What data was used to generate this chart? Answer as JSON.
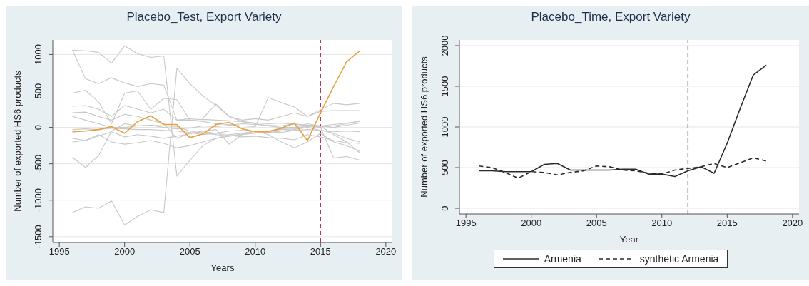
{
  "chart_data": [
    {
      "type": "line",
      "title": "Placebo_Test, Export Variety",
      "xlabel": "Years",
      "ylabel": "Number of exported HS6 products",
      "x": [
        1996,
        1997,
        1998,
        1999,
        2000,
        2001,
        2002,
        2003,
        2004,
        2005,
        2006,
        2007,
        2008,
        2009,
        2010,
        2011,
        2012,
        2013,
        2014,
        2015,
        2016,
        2017,
        2018
      ],
      "series": [
        {
          "color": "#c8c8c8",
          "values": [
            1060,
            1050,
            1030,
            880,
            1120,
            1010,
            960,
            980,
            -670,
            -450,
            -250,
            -150,
            -100,
            -80,
            -50,
            -60,
            -70,
            -40,
            -30,
            -40,
            -80,
            -150,
            -200
          ]
        },
        {
          "color": "#c8c8c8",
          "values": [
            1060,
            670,
            600,
            680,
            610,
            560,
            600,
            580,
            100,
            100,
            110,
            100,
            90,
            80,
            60,
            50,
            60,
            40,
            30,
            20,
            40,
            60,
            80
          ]
        },
        {
          "color": "#c8c8c8",
          "values": [
            -1170,
            -1090,
            -1110,
            -1010,
            -1340,
            -1220,
            -1130,
            -1170,
            810,
            600,
            430,
            300,
            150,
            80,
            50,
            20,
            0,
            0,
            10,
            20,
            0,
            30,
            60
          ]
        },
        {
          "color": "#c8c8c8",
          "values": [
            470,
            510,
            350,
            50,
            470,
            500,
            250,
            400,
            380,
            100,
            80,
            50,
            40,
            20,
            10,
            410,
            340,
            280,
            150,
            240,
            330,
            310,
            330
          ]
        },
        {
          "color": "#c8c8c8",
          "values": [
            -410,
            -550,
            -390,
            -50,
            50,
            20,
            30,
            20,
            10,
            -50,
            -80,
            -100,
            -120,
            -90,
            -80,
            -50,
            -30,
            -20,
            20,
            0,
            -420,
            -400,
            -450
          ]
        },
        {
          "color": "#c8c8c8",
          "values": [
            290,
            300,
            250,
            150,
            300,
            250,
            200,
            250,
            100,
            120,
            130,
            320,
            150,
            100,
            120,
            100,
            150,
            200,
            150,
            220,
            230,
            230,
            230
          ]
        },
        {
          "color": "#c8c8c8",
          "values": [
            200,
            210,
            150,
            100,
            180,
            150,
            100,
            50,
            -150,
            -80,
            -50,
            -30,
            -230,
            -100,
            -50,
            -100,
            -200,
            -280,
            -200,
            -80,
            -200,
            -250,
            -330
          ]
        },
        {
          "color": "#c8c8c8",
          "values": [
            -150,
            -180,
            -100,
            -200,
            -230,
            -210,
            -180,
            -220,
            -280,
            -250,
            -200,
            -150,
            -120,
            -100,
            -80,
            -50,
            -20,
            0,
            50,
            20,
            -100,
            -200,
            -350
          ]
        },
        {
          "color": "#c8c8c8",
          "values": [
            150,
            100,
            50,
            0,
            0,
            20,
            30,
            0,
            -20,
            -10,
            20,
            10,
            30,
            50,
            40,
            30,
            20,
            50,
            30,
            10,
            20,
            50,
            90
          ]
        },
        {
          "color": "#c8c8c8",
          "values": [
            -200,
            -180,
            -120,
            -60,
            -130,
            -100,
            -120,
            -150,
            -120,
            -90,
            -60,
            -80,
            -50,
            -40,
            -60,
            -70,
            -50,
            -30,
            0,
            -40,
            -60,
            -50,
            -60
          ]
        },
        {
          "color": "#c8c8c8",
          "values": [
            -30,
            -20,
            -30,
            -10,
            -20,
            -30,
            -30,
            -40,
            -50,
            -70,
            -100,
            -80,
            -110,
            -130,
            -120,
            -140,
            -150,
            -170,
            -100,
            -130,
            -180,
            -210,
            -220
          ]
        },
        {
          "color": "#e8a040",
          "values": [
            -60,
            -50,
            -30,
            10,
            -80,
            80,
            160,
            40,
            40,
            -140,
            -90,
            40,
            70,
            -20,
            -60,
            -60,
            -10,
            60,
            -180,
            200,
            560,
            900,
            1050
          ]
        }
      ],
      "xlim": [
        1994.5,
        2020.5
      ],
      "xticks": [
        1995,
        2000,
        2005,
        2010,
        2015,
        2020
      ],
      "ylim": [
        -1580,
        1200
      ],
      "yticks": [
        -1500,
        -1000,
        -500,
        0,
        500,
        1000
      ],
      "ref_lines": [
        {
          "axis": "x",
          "value": 2015,
          "color": "#b03050",
          "line_style": "dashed"
        }
      ],
      "grid": "y",
      "legend": false,
      "marker": "none",
      "line_style": "solid"
    },
    {
      "type": "line",
      "title": "Placebo_Time, Export Variety",
      "xlabel": "Year",
      "ylabel": "Number of exported HS6 products",
      "x": [
        1996,
        1997,
        1998,
        1999,
        2000,
        2001,
        2002,
        2003,
        2004,
        2005,
        2006,
        2007,
        2008,
        2009,
        2010,
        2011,
        2012,
        2013,
        2014,
        2015,
        2016,
        2017,
        2018
      ],
      "series": [
        {
          "name": "Armenia",
          "color": "#2a2a2a",
          "line_style": "solid",
          "values": [
            460,
            460,
            450,
            450,
            450,
            540,
            550,
            470,
            470,
            470,
            470,
            480,
            480,
            420,
            420,
            390,
            460,
            510,
            430,
            800,
            1230,
            1640,
            1760
          ]
        },
        {
          "name": "synthetic Armenia",
          "color": "#2a2a2a",
          "line_style": "dashed",
          "values": [
            520,
            500,
            440,
            370,
            450,
            440,
            410,
            440,
            460,
            520,
            510,
            470,
            460,
            430,
            420,
            470,
            490,
            510,
            550,
            500,
            560,
            620,
            580
          ]
        }
      ],
      "xlim": [
        1994.5,
        2020.5
      ],
      "xticks": [
        1995,
        2000,
        2005,
        2010,
        2015,
        2020
      ],
      "ylim": [
        -70,
        2070
      ],
      "yticks": [
        0,
        500,
        1000,
        1500,
        2000
      ],
      "ref_lines": [
        {
          "axis": "x",
          "value": 2012,
          "color": "#2a2a2a",
          "line_style": "dashed"
        }
      ],
      "grid": "y",
      "legend": "bottom",
      "marker": "none"
    }
  ]
}
